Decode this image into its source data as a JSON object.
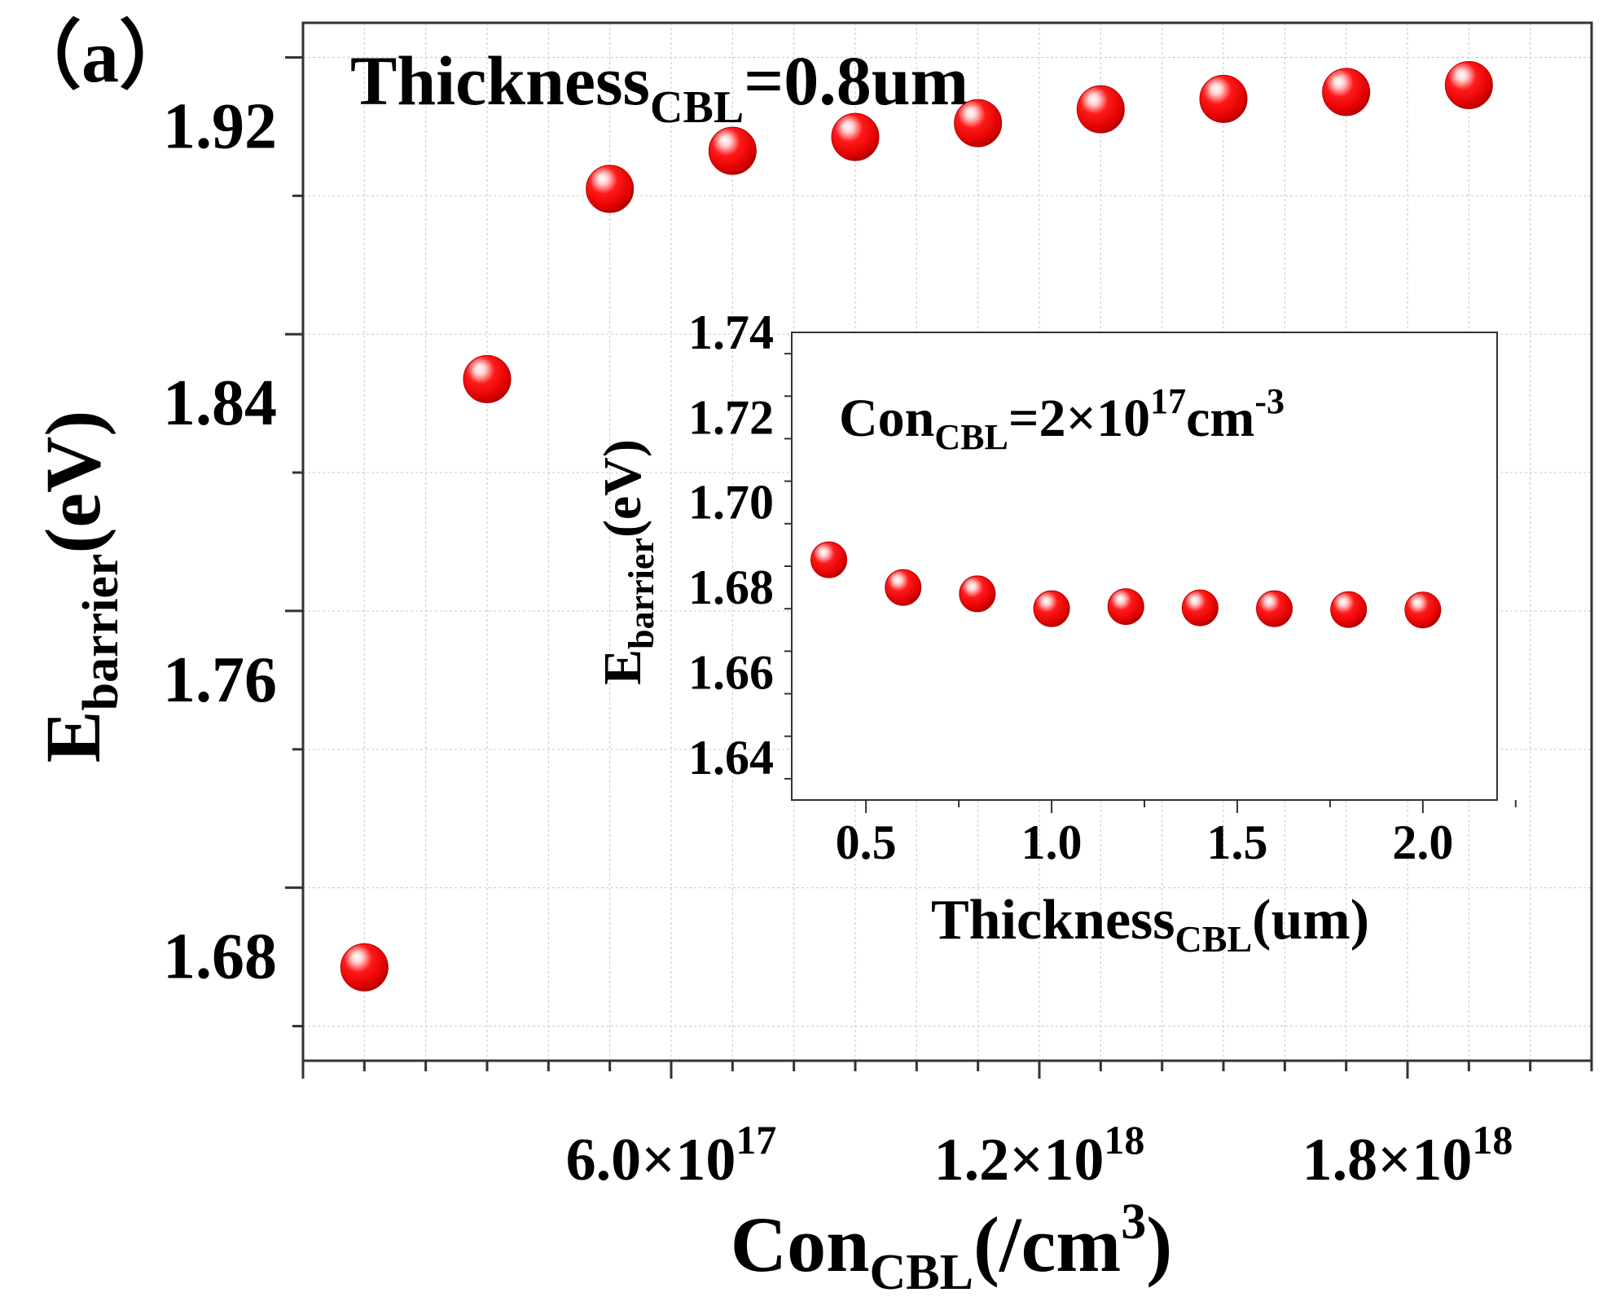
{
  "panel_label": "（a）",
  "colors": {
    "marker": "#ff0000",
    "marker_dark": "#b80000",
    "grid": "#cfcfcf",
    "axis": "#333333",
    "text": "#000000"
  },
  "chart_data": [
    {
      "id": "main",
      "type": "scatter",
      "annotation": {
        "base": "Thickness",
        "sub": "CBL",
        "tail": "=0.8um"
      },
      "xlabel": {
        "base": "Con",
        "sub": "CBL",
        "tail": "(/cm",
        "sup": "3",
        "end": ")"
      },
      "ylabel": {
        "base": "E",
        "sub": "barrier",
        "tail": "(eV)"
      },
      "xlim": [
        0,
        2.1e+18
      ],
      "ylim": [
        1.65,
        1.95
      ],
      "x_ticks": [
        {
          "value": 6e+17,
          "mantissa": "6.0×10",
          "exp": "17"
        },
        {
          "value": 1.2e+18,
          "mantissa": "1.2×10",
          "exp": "18"
        },
        {
          "value": 1.8e+18,
          "mantissa": "1.8×10",
          "exp": "18"
        }
      ],
      "y_ticks": [
        "1.68",
        "1.76",
        "1.84",
        "1.92"
      ],
      "grid": true,
      "x": [
        1e+17,
        3e+17,
        5e+17,
        7e+17,
        9e+17,
        1.1e+18,
        1.3e+18,
        1.5e+18,
        1.7e+18,
        1.9e+18
      ],
      "y": [
        1.677,
        1.847,
        1.902,
        1.913,
        1.917,
        1.921,
        1.925,
        1.928,
        1.93,
        1.932
      ]
    },
    {
      "id": "inset",
      "type": "scatter",
      "annotation": {
        "base": "Con",
        "sub": "CBL",
        "tail": "=2×10",
        "sup": "17",
        "mid": "cm",
        "sup2": "-3"
      },
      "xlabel": {
        "base": "Thickness",
        "sub": "CBL",
        "tail": "(um)"
      },
      "ylabel": {
        "base": "E",
        "sub": "barrier",
        "tail": "(eV)"
      },
      "xlim": [
        0.3,
        2.2
      ],
      "ylim": [
        1.63,
        1.74
      ],
      "x_ticks": [
        "0.5",
        "1.0",
        "1.5",
        "2.0"
      ],
      "y_ticks": [
        "1.64",
        "1.66",
        "1.68",
        "1.70",
        "1.72",
        "1.74"
      ],
      "grid": false,
      "x": [
        0.4,
        0.6,
        0.8,
        1.0,
        1.2,
        1.4,
        1.6,
        1.8,
        2.0
      ],
      "y": [
        1.6865,
        1.68,
        1.6785,
        1.675,
        1.6755,
        1.6752,
        1.675,
        1.6748,
        1.6747
      ]
    }
  ]
}
